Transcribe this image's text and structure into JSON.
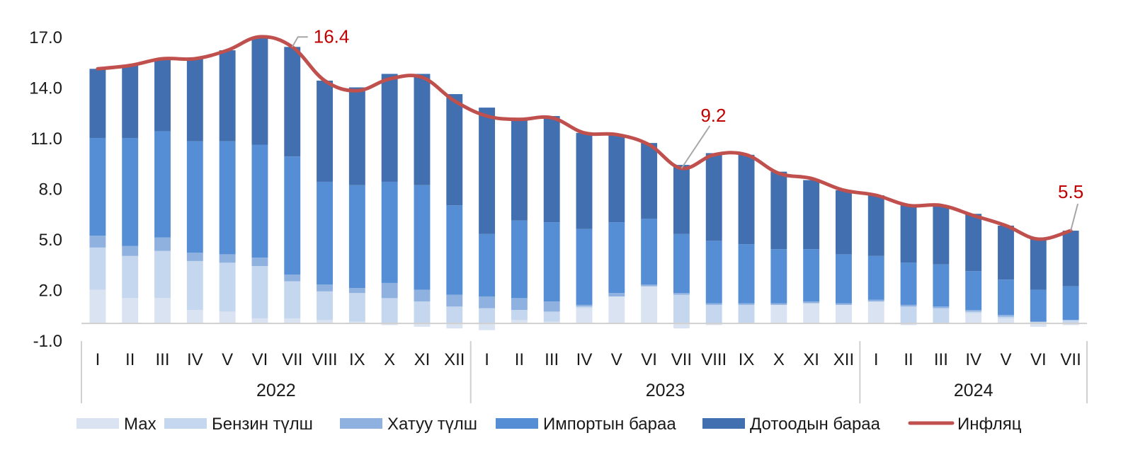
{
  "chart_data": {
    "type": "bar",
    "subtype": "stacked_bar_with_line",
    "title": "",
    "xlabel": "",
    "ylabel": "",
    "ylim": [
      -1.0,
      17.0
    ],
    "yticks": [
      "17.0",
      "14.0",
      "11.0",
      "8.0",
      "5.0",
      "2.0",
      "-1.0"
    ],
    "ytick_values": [
      17,
      14,
      11,
      8,
      5,
      2,
      -1
    ],
    "grid": false,
    "legend_position": "bottom",
    "groups": [
      {
        "label": "2022",
        "months": [
          "I",
          "II",
          "III",
          "IV",
          "V",
          "VI",
          "VII",
          "VIII",
          "IX",
          "X",
          "XI",
          "XII"
        ]
      },
      {
        "label": "2023",
        "months": [
          "I",
          "II",
          "III",
          "IV",
          "V",
          "VI",
          "VII",
          "VIII",
          "IX",
          "X",
          "XI",
          "XII"
        ]
      },
      {
        "label": "2024",
        "months": [
          "I",
          "II",
          "III",
          "IV",
          "V",
          "VI",
          "VII"
        ]
      }
    ],
    "categories": [
      "2022-I",
      "2022-II",
      "2022-III",
      "2022-IV",
      "2022-V",
      "2022-VI",
      "2022-VII",
      "2022-VIII",
      "2022-IX",
      "2022-X",
      "2022-XI",
      "2022-XII",
      "2023-I",
      "2023-II",
      "2023-III",
      "2023-IV",
      "2023-V",
      "2023-VI",
      "2023-VII",
      "2023-VIII",
      "2023-IX",
      "2023-X",
      "2023-XI",
      "2023-XII",
      "2024-I",
      "2024-II",
      "2024-III",
      "2024-IV",
      "2024-V",
      "2024-VI",
      "2024-VII"
    ],
    "series": [
      {
        "name": "Мах",
        "type": "bar",
        "color": "#dae3f1",
        "values": [
          2.0,
          1.5,
          1.5,
          0.8,
          0.7,
          0.3,
          0.3,
          0.2,
          0.1,
          -0.1,
          -0.2,
          -0.3,
          -0.4,
          0.2,
          0.1,
          0.9,
          1.6,
          2.2,
          -0.3,
          -0.1,
          0.0,
          1.1,
          1.2,
          1.1,
          1.3,
          -0.1,
          0.0,
          0.6,
          0.3,
          -0.2,
          -0.1
        ]
      },
      {
        "name": "Бензин түлш",
        "type": "bar",
        "color": "#c5d7ef",
        "values": [
          2.5,
          2.5,
          2.8,
          2.9,
          2.9,
          3.1,
          2.2,
          1.7,
          1.7,
          1.5,
          1.3,
          1.0,
          0.9,
          0.6,
          0.6,
          0.1,
          0.0,
          0.0,
          1.7,
          1.1,
          1.1,
          0.0,
          0.0,
          0.0,
          0.0,
          1.0,
          0.9,
          0.1,
          0.1,
          0.1,
          0.2
        ]
      },
      {
        "name": "Хатуу түлш",
        "type": "bar",
        "color": "#8fb1e0",
        "values": [
          0.7,
          0.6,
          0.8,
          0.5,
          0.5,
          0.5,
          0.4,
          0.4,
          0.3,
          0.9,
          0.7,
          0.7,
          0.7,
          0.7,
          0.6,
          0.1,
          0.2,
          0.1,
          0.1,
          0.1,
          0.1,
          0.1,
          0.1,
          0.1,
          0.1,
          0.1,
          0.1,
          0.1,
          0.1,
          0.0,
          0.0
        ]
      },
      {
        "name": "Импортын бараа",
        "type": "bar",
        "color": "#558ed5",
        "values": [
          5.8,
          6.4,
          6.3,
          6.6,
          6.7,
          6.7,
          7.0,
          6.1,
          6.1,
          6.0,
          6.2,
          5.3,
          3.7,
          4.6,
          4.7,
          4.5,
          4.2,
          3.9,
          3.5,
          3.7,
          3.5,
          3.2,
          3.1,
          2.9,
          2.6,
          2.5,
          2.5,
          2.3,
          2.1,
          1.9,
          2.0
        ]
      },
      {
        "name": "Дотоодын бараа",
        "type": "bar",
        "color": "#416faf",
        "values": [
          4.1,
          4.3,
          4.3,
          4.9,
          5.4,
          6.4,
          6.5,
          6.0,
          5.8,
          6.4,
          6.6,
          6.6,
          7.5,
          6.1,
          6.3,
          5.7,
          5.2,
          4.5,
          4.1,
          5.2,
          5.3,
          4.6,
          4.1,
          3.8,
          3.6,
          3.4,
          3.5,
          3.4,
          3.2,
          3.1,
          3.3
        ]
      },
      {
        "name": "Инфляц",
        "type": "line",
        "color": "#c0504d",
        "values": [
          15.1,
          15.3,
          15.7,
          15.7,
          16.2,
          17.0,
          16.4,
          14.4,
          13.8,
          14.5,
          14.6,
          13.2,
          12.3,
          12.1,
          12.2,
          11.3,
          11.2,
          10.6,
          9.2,
          10.0,
          10.0,
          8.9,
          8.6,
          7.9,
          7.6,
          7.0,
          7.0,
          6.4,
          5.8,
          5.0,
          5.5
        ]
      }
    ],
    "annotations": [
      {
        "index": 6,
        "text": "16.4"
      },
      {
        "index": 18,
        "text": "9.2"
      },
      {
        "index": 30,
        "text": "5.5"
      }
    ]
  },
  "legend": {
    "items": [
      {
        "label": "Мах",
        "color": "#dae3f1",
        "kind": "bar"
      },
      {
        "label": "Бензин түлш",
        "color": "#c5d7ef",
        "kind": "bar"
      },
      {
        "label": "Хатуу түлш",
        "color": "#8fb1e0",
        "kind": "bar"
      },
      {
        "label": "Импортын бараа",
        "color": "#558ed5",
        "kind": "bar"
      },
      {
        "label": "Дотоодын бараа",
        "color": "#416faf",
        "kind": "bar"
      },
      {
        "label": "Инфляц",
        "color": "#c0504d",
        "kind": "line"
      }
    ]
  },
  "colors": {
    "axis": "#d0d0d0",
    "annotation_text": "#c00000",
    "leader_line": "#a6a6a6"
  }
}
